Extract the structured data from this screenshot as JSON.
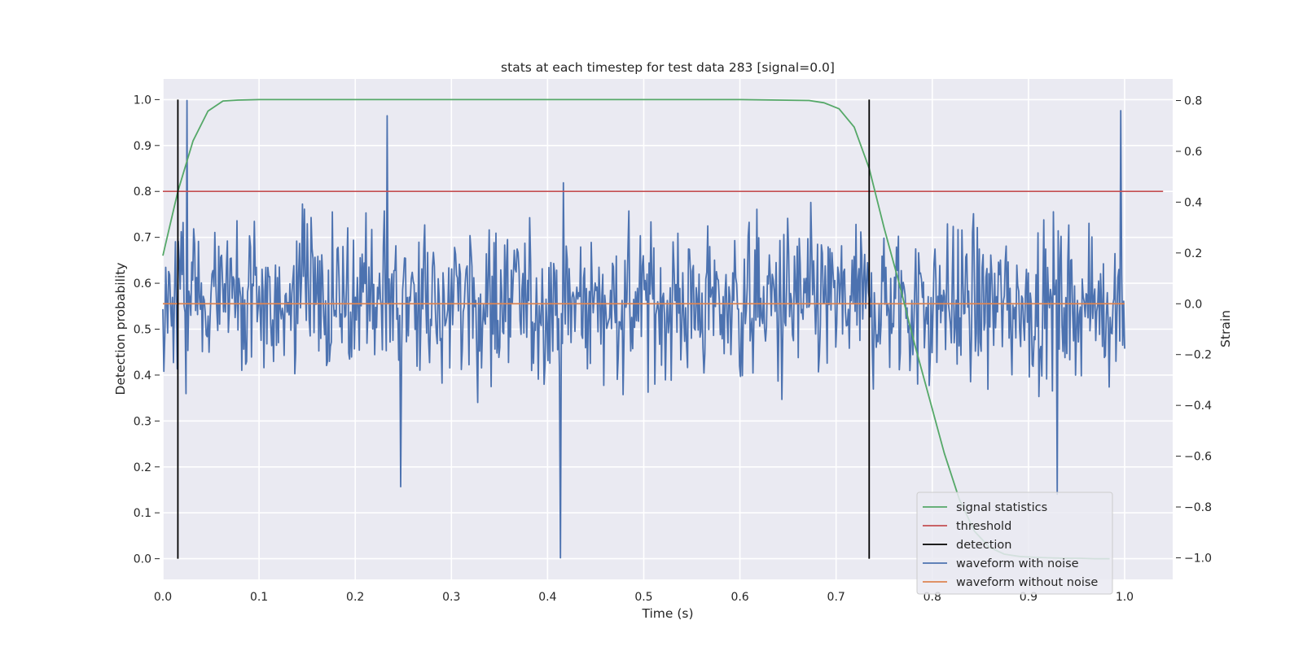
{
  "chart_data": {
    "type": "line",
    "title": "stats at each timestep for test data 283 [signal=0.0]",
    "xlabel": "Time (s)",
    "ylabel_left": "Detection probability",
    "ylabel_right": "Strain",
    "xlim": [
      0.0,
      1.05
    ],
    "ylim_left": [
      -0.045,
      1.045
    ],
    "ylim_right": [
      -1.085,
      0.885
    ],
    "x_ticks": [
      0.0,
      0.1,
      0.2,
      0.3,
      0.4,
      0.5,
      0.6,
      0.7,
      0.8,
      0.9,
      1.0
    ],
    "x_tick_labels": [
      "0.0",
      "0.1",
      "0.2",
      "0.3",
      "0.4",
      "0.5",
      "0.6",
      "0.7",
      "0.8",
      "0.9",
      "1.0"
    ],
    "y_left_ticks": [
      0.0,
      0.1,
      0.2,
      0.3,
      0.4,
      0.5,
      0.6,
      0.7,
      0.8,
      0.9,
      1.0
    ],
    "y_left_tick_labels": [
      "0.0",
      "0.1",
      "0.2",
      "0.3",
      "0.4",
      "0.5",
      "0.6",
      "0.7",
      "0.8",
      "0.9",
      "1.0"
    ],
    "y_right_ticks": [
      0.8,
      0.6,
      0.4,
      0.2,
      0.0,
      -0.2,
      -0.4,
      -0.6,
      -0.8,
      -1.0
    ],
    "y_right_tick_labels": [
      "0.8",
      "0.6",
      "0.4",
      "0.2",
      "0.0",
      "−0.2",
      "−0.4",
      "−0.6",
      "−0.8",
      "−1.0"
    ],
    "grid": true,
    "legend_position": "lower-right",
    "series": [
      {
        "name": "signal statistics",
        "axis": "left",
        "color": "#55a868",
        "x": [
          0.0,
          0.0156,
          0.0313,
          0.0469,
          0.0625,
          0.0781,
          0.1,
          0.2,
          0.3,
          0.4,
          0.5,
          0.6,
          0.6406,
          0.6719,
          0.6875,
          0.7031,
          0.7188,
          0.7344,
          0.75,
          0.7656,
          0.7813,
          0.7969,
          0.8125,
          0.8281,
          0.8438,
          0.8594,
          0.875,
          0.8906,
          0.9063,
          0.9219,
          0.9375,
          0.9531,
          0.9688,
          0.9844
        ],
        "y": [
          0.66,
          0.8,
          0.91,
          0.975,
          0.997,
          0.999,
          1.0,
          1.0,
          1.0,
          1.0,
          1.0,
          1.0,
          0.999,
          0.998,
          0.993,
          0.98,
          0.94,
          0.85,
          0.72,
          0.6,
          0.47,
          0.35,
          0.23,
          0.13,
          0.06,
          0.025,
          0.01,
          0.005,
          0.003,
          0.002,
          0.001,
          0.001,
          0.0,
          0.0
        ]
      },
      {
        "name": "threshold",
        "axis": "left",
        "color": "#c44e52",
        "x": [
          0.0,
          1.04
        ],
        "y": [
          0.8,
          0.8
        ]
      },
      {
        "name": "detection",
        "axis": "left",
        "color": "#000000",
        "segments": [
          {
            "x": 0.0156,
            "y0": 0.0,
            "y1": 1.0
          },
          {
            "x": 0.7344,
            "y0": 0.0,
            "y1": 1.0
          }
        ]
      },
      {
        "name": "waveform with noise",
        "axis": "right",
        "color": "#4c72b0",
        "samples": 1000,
        "x_range": [
          0.0,
          1.0
        ],
        "y_range": [
          -1.0,
          0.8
        ],
        "notable_points": [
          {
            "x": 0.025,
            "y": 0.8
          },
          {
            "x": 0.233,
            "y": 0.74
          },
          {
            "x": 0.247,
            "y": -0.72
          },
          {
            "x": 0.413,
            "y": -1.0
          },
          {
            "x": 0.93,
            "y": -0.75
          },
          {
            "x": 0.996,
            "y": 0.76
          }
        ]
      },
      {
        "name": "waveform without noise",
        "axis": "right",
        "color": "#dd8452",
        "x": [
          0.0,
          1.0
        ],
        "y": [
          0.0,
          0.0
        ]
      }
    ],
    "legend": [
      {
        "label": "signal statistics",
        "color": "#55a868"
      },
      {
        "label": "threshold",
        "color": "#c44e52"
      },
      {
        "label": "detection",
        "color": "#000000"
      },
      {
        "label": "waveform with noise",
        "color": "#4c72b0"
      },
      {
        "label": "waveform without noise",
        "color": "#dd8452"
      }
    ]
  }
}
